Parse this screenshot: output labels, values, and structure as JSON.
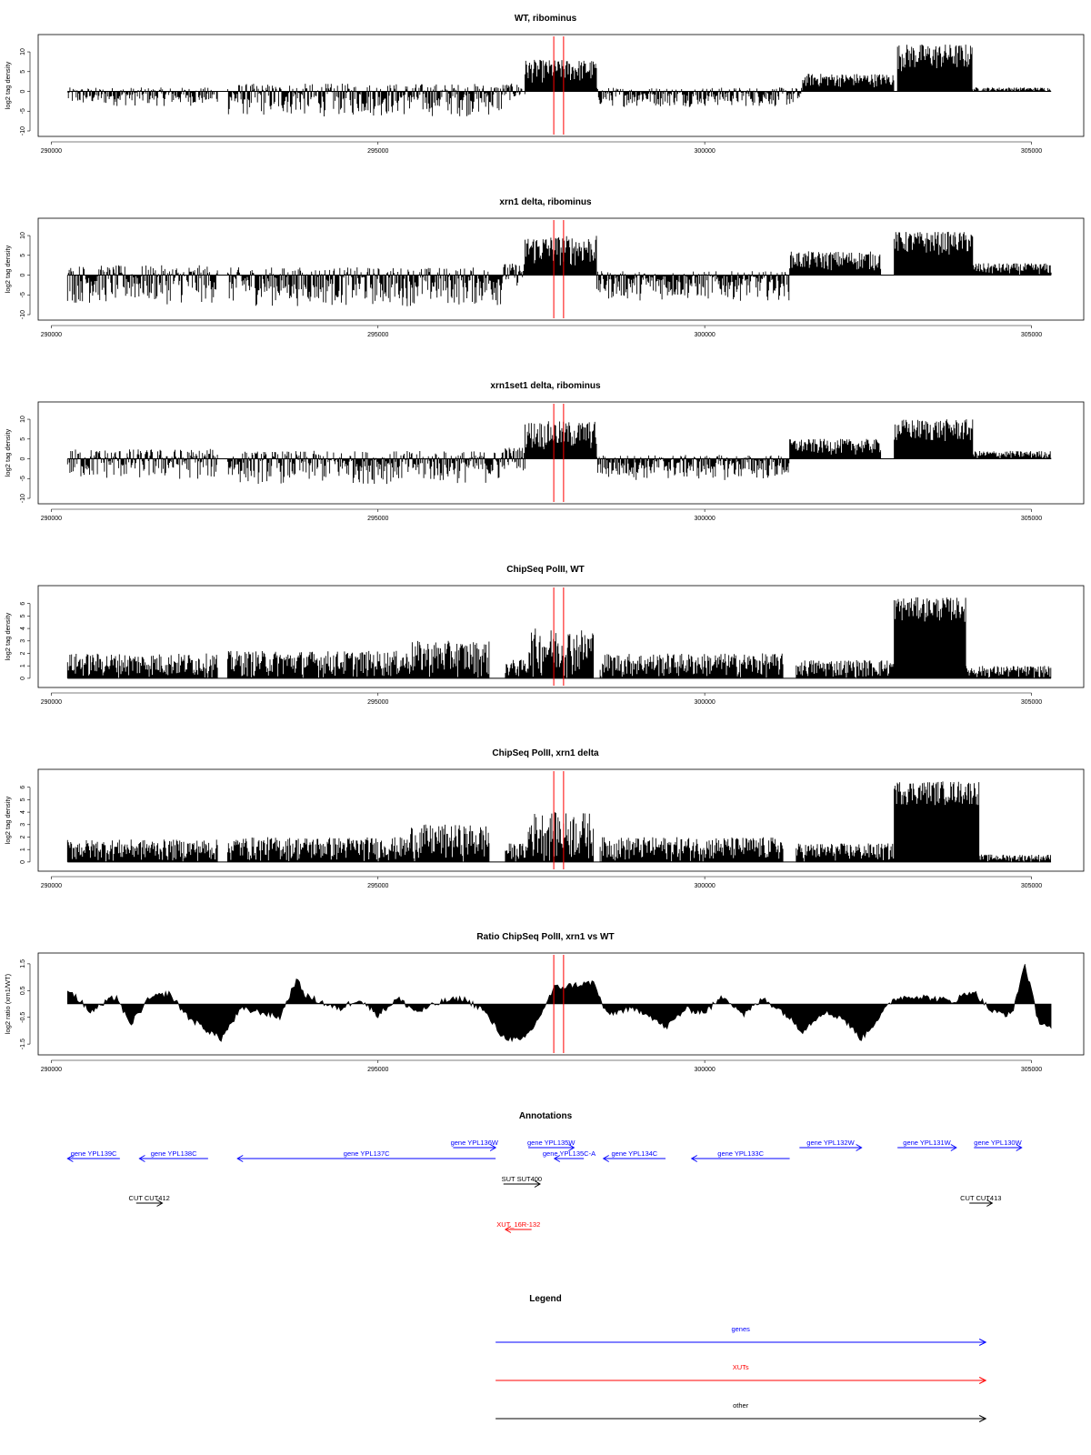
{
  "chart_data": [
    {
      "type": "bar",
      "title": "WT, ribominus",
      "ylabel": "log2 tag density",
      "x_ticks": [
        "290000",
        "295000",
        "300000",
        "305000"
      ],
      "y_ticks": [
        "-10",
        "-5",
        "0",
        "5",
        "10"
      ],
      "ylim": [
        -10,
        13
      ],
      "series": [
        {
          "values": []
        }
      ],
      "markers": [
        297690,
        297840
      ],
      "segments": [
        {
          "from": 290250,
          "to": 292550,
          "min": -3.8,
          "max": 1.0
        },
        {
          "from": 292700,
          "to": 296900,
          "min": -6.5,
          "max": 2.0
        },
        {
          "from": 296900,
          "to": 297250,
          "min": -2.5,
          "max": 2.0
        },
        {
          "from": 297250,
          "to": 298350,
          "min": 2.0,
          "max": 8.0
        },
        {
          "from": 298350,
          "to": 301500,
          "min": -4.0,
          "max": 1.0
        },
        {
          "from": 301500,
          "to": 302900,
          "min": 1.0,
          "max": 4.5
        },
        {
          "from": 302950,
          "to": 304100,
          "min": 5.0,
          "max": 12.0
        },
        {
          "from": 304100,
          "to": 305300,
          "min": 0.0,
          "max": 1.0
        }
      ]
    },
    {
      "type": "bar",
      "title": "xrn1 delta, ribominus",
      "ylabel": "log2 tag density",
      "x_ticks": [
        "290000",
        "295000",
        "300000",
        "305000"
      ],
      "y_ticks": [
        "-10",
        "-5",
        "0",
        "5",
        "10"
      ],
      "ylim": [
        -10,
        13
      ],
      "markers": [
        297690,
        297840
      ],
      "segments": [
        {
          "from": 290250,
          "to": 292550,
          "min": -7.5,
          "max": 2.5
        },
        {
          "from": 292700,
          "to": 296900,
          "min": -8.0,
          "max": 2.0
        },
        {
          "from": 296900,
          "to": 297250,
          "min": -3.0,
          "max": 3.0
        },
        {
          "from": 297250,
          "to": 298350,
          "min": 2.0,
          "max": 10.0
        },
        {
          "from": 298350,
          "to": 301300,
          "min": -6.5,
          "max": 1.0
        },
        {
          "from": 301300,
          "to": 302700,
          "min": 1.0,
          "max": 6.0
        },
        {
          "from": 302900,
          "to": 304100,
          "min": 5.0,
          "max": 11.0
        },
        {
          "from": 304100,
          "to": 305300,
          "min": 0.0,
          "max": 3.0
        }
      ]
    },
    {
      "type": "bar",
      "title": "xrn1set1 delta, ribominus",
      "ylabel": "log2 tag density",
      "x_ticks": [
        "290000",
        "295000",
        "300000",
        "305000"
      ],
      "y_ticks": [
        "-10",
        "-5",
        "0",
        "5",
        "10"
      ],
      "ylim": [
        -10,
        13
      ],
      "markers": [
        297690,
        297840
      ],
      "segments": [
        {
          "from": 290250,
          "to": 292550,
          "min": -5.5,
          "max": 2.5
        },
        {
          "from": 292700,
          "to": 296900,
          "min": -6.5,
          "max": 2.0
        },
        {
          "from": 296900,
          "to": 297250,
          "min": -3.0,
          "max": 3.0
        },
        {
          "from": 297250,
          "to": 298350,
          "min": 2.0,
          "max": 9.5
        },
        {
          "from": 298350,
          "to": 301300,
          "min": -5.5,
          "max": 1.0
        },
        {
          "from": 301300,
          "to": 302700,
          "min": 1.0,
          "max": 5.0
        },
        {
          "from": 302900,
          "to": 304100,
          "min": 4.0,
          "max": 10.0
        },
        {
          "from": 304100,
          "to": 305300,
          "min": 0.0,
          "max": 2.0
        }
      ]
    },
    {
      "type": "bar",
      "title": "ChipSeq PolII, WT",
      "ylabel": "log2 tag density",
      "x_ticks": [
        "290000",
        "295000",
        "300000",
        "305000"
      ],
      "y_ticks": [
        "0",
        "1",
        "2",
        "3",
        "4",
        "5",
        "6"
      ],
      "ylim": [
        -0.3,
        7
      ],
      "markers": [
        297690,
        297840
      ],
      "segments": [
        {
          "from": 290250,
          "to": 292550,
          "min": 0,
          "max": 2.0
        },
        {
          "from": 292700,
          "to": 295500,
          "min": 0,
          "max": 2.2
        },
        {
          "from": 295500,
          "to": 296700,
          "min": 0,
          "max": 3.0
        },
        {
          "from": 296950,
          "to": 297300,
          "min": 0,
          "max": 1.5
        },
        {
          "from": 297300,
          "to": 298300,
          "min": 0,
          "max": 4.0
        },
        {
          "from": 298400,
          "to": 301200,
          "min": 0,
          "max": 2.0
        },
        {
          "from": 301400,
          "to": 302900,
          "min": 0,
          "max": 1.5
        },
        {
          "from": 302900,
          "to": 304000,
          "min": 4.5,
          "max": 6.5
        },
        {
          "from": 304000,
          "to": 305300,
          "min": 0,
          "max": 1.0
        }
      ]
    },
    {
      "type": "bar",
      "title": "ChipSeq PolII, xrn1 delta",
      "ylabel": "log2 tag density",
      "x_ticks": [
        "290000",
        "295000",
        "300000",
        "305000"
      ],
      "y_ticks": [
        "0",
        "1",
        "2",
        "3",
        "4",
        "5",
        "6"
      ],
      "ylim": [
        -0.3,
        7
      ],
      "markers": [
        297690,
        297840
      ],
      "segments": [
        {
          "from": 290250,
          "to": 292550,
          "min": 0,
          "max": 1.8
        },
        {
          "from": 292700,
          "to": 295500,
          "min": 0,
          "max": 2.0
        },
        {
          "from": 295500,
          "to": 296700,
          "min": 0,
          "max": 3.0
        },
        {
          "from": 296950,
          "to": 297300,
          "min": 0,
          "max": 1.5
        },
        {
          "from": 297300,
          "to": 298300,
          "min": 0,
          "max": 4.0
        },
        {
          "from": 298400,
          "to": 301200,
          "min": 0,
          "max": 2.0
        },
        {
          "from": 301400,
          "to": 302900,
          "min": 0,
          "max": 1.5
        },
        {
          "from": 302900,
          "to": 304200,
          "min": 4.5,
          "max": 6.5
        },
        {
          "from": 304200,
          "to": 305300,
          "min": 0,
          "max": 0.6
        }
      ]
    },
    {
      "type": "area",
      "title": "Ratio ChipSeq PolII, xrn1 vs WT",
      "ylabel": "log2 ratio (xrn1/WT)",
      "x_ticks": [
        "290000",
        "295000",
        "300000",
        "305000"
      ],
      "y_ticks": [
        "-1.5",
        "-0.5",
        "0.5",
        "1.5"
      ],
      "ylim": [
        -1.7,
        1.7
      ],
      "markers": [
        297690,
        297840
      ],
      "x": [
        290250,
        290600,
        291000,
        291200,
        291500,
        291800,
        292100,
        292400,
        292600,
        292900,
        293200,
        293500,
        293750,
        293900,
        294100,
        294400,
        294700,
        295000,
        295300,
        295600,
        296000,
        296300,
        296600,
        296900,
        297200,
        297400,
        297700,
        298000,
        298300,
        298500,
        298800,
        299100,
        299400,
        299700,
        300000,
        300300,
        300600,
        300900,
        301200,
        301500,
        301800,
        302100,
        302400,
        302600,
        302900,
        303200,
        303500,
        303800,
        304100,
        304400,
        304700,
        304900,
        305100,
        305300
      ],
      "values": [
        0.6,
        -0.3,
        0.3,
        -0.8,
        0.2,
        0.4,
        -0.5,
        -1.0,
        -1.3,
        -0.2,
        -0.3,
        -0.5,
        0.9,
        0.3,
        0.1,
        -0.2,
        0.2,
        -0.4,
        0.2,
        -0.3,
        0.1,
        0.2,
        -0.2,
        -1.2,
        -1.4,
        -0.8,
        0.6,
        0.7,
        0.8,
        -0.4,
        -0.2,
        -0.3,
        -0.9,
        -0.2,
        -0.3,
        0.3,
        -0.4,
        0.2,
        -0.3,
        -1.0,
        -0.3,
        -0.5,
        -1.3,
        -0.7,
        0.2,
        0.3,
        0.2,
        0.1,
        0.5,
        -0.3,
        -0.4,
        1.5,
        -0.6,
        -0.9
      ]
    },
    {
      "type": "other",
      "title": "Annotations",
      "features": [
        {
          "label": "gene YPL139C",
          "from": 290250,
          "to": 291050,
          "dir": -1,
          "kind": "genes",
          "row": 1
        },
        {
          "label": "gene YPL138C",
          "from": 291350,
          "to": 292400,
          "dir": -1,
          "kind": "genes",
          "row": 1
        },
        {
          "label": "gene YPL137C",
          "from": 292850,
          "to": 296800,
          "dir": -1,
          "kind": "genes",
          "row": 1
        },
        {
          "label": "gene YPL136W",
          "from": 296150,
          "to": 296800,
          "dir": 1,
          "kind": "genes",
          "row": 0
        },
        {
          "label": "gene YPL135W",
          "from": 297300,
          "to": 298000,
          "dir": 1,
          "kind": "genes",
          "row": 0
        },
        {
          "label": "gene YPL135C-A",
          "from": 297700,
          "to": 298150,
          "dir": -1,
          "kind": "genes",
          "row": 1
        },
        {
          "label": "gene YPL134C",
          "from": 298450,
          "to": 299400,
          "dir": -1,
          "kind": "genes",
          "row": 1
        },
        {
          "label": "gene YPL133C",
          "from": 299800,
          "to": 301300,
          "dir": -1,
          "kind": "genes",
          "row": 1
        },
        {
          "label": "gene YPL132W",
          "from": 301450,
          "to": 302400,
          "dir": 1,
          "kind": "genes",
          "row": 0
        },
        {
          "label": "gene YPL131W",
          "from": 302950,
          "to": 303850,
          "dir": 1,
          "kind": "genes",
          "row": 0
        },
        {
          "label": "gene YPL130W",
          "from": 304120,
          "to": 304850,
          "dir": 1,
          "kind": "genes",
          "row": 0
        },
        {
          "label": "SUT SUT400",
          "from": 296920,
          "to": 297480,
          "dir": 1,
          "kind": "other",
          "row": 2
        },
        {
          "label": "CUT CUT412",
          "from": 291300,
          "to": 291700,
          "dir": 1,
          "kind": "other",
          "row": 3
        },
        {
          "label": "CUT CUT413",
          "from": 304050,
          "to": 304400,
          "dir": 1,
          "kind": "other",
          "row": 3
        },
        {
          "label": "XUT_16R-132",
          "from": 296950,
          "to": 297350,
          "dir": -1,
          "kind": "XUTs",
          "row": 4
        }
      ]
    },
    {
      "type": "other",
      "title": "Legend",
      "items": [
        {
          "label": "genes",
          "color": "#0000ff"
        },
        {
          "label": "XUTs",
          "color": "#ff0000"
        },
        {
          "label": "other",
          "color": "#000000"
        }
      ]
    }
  ]
}
